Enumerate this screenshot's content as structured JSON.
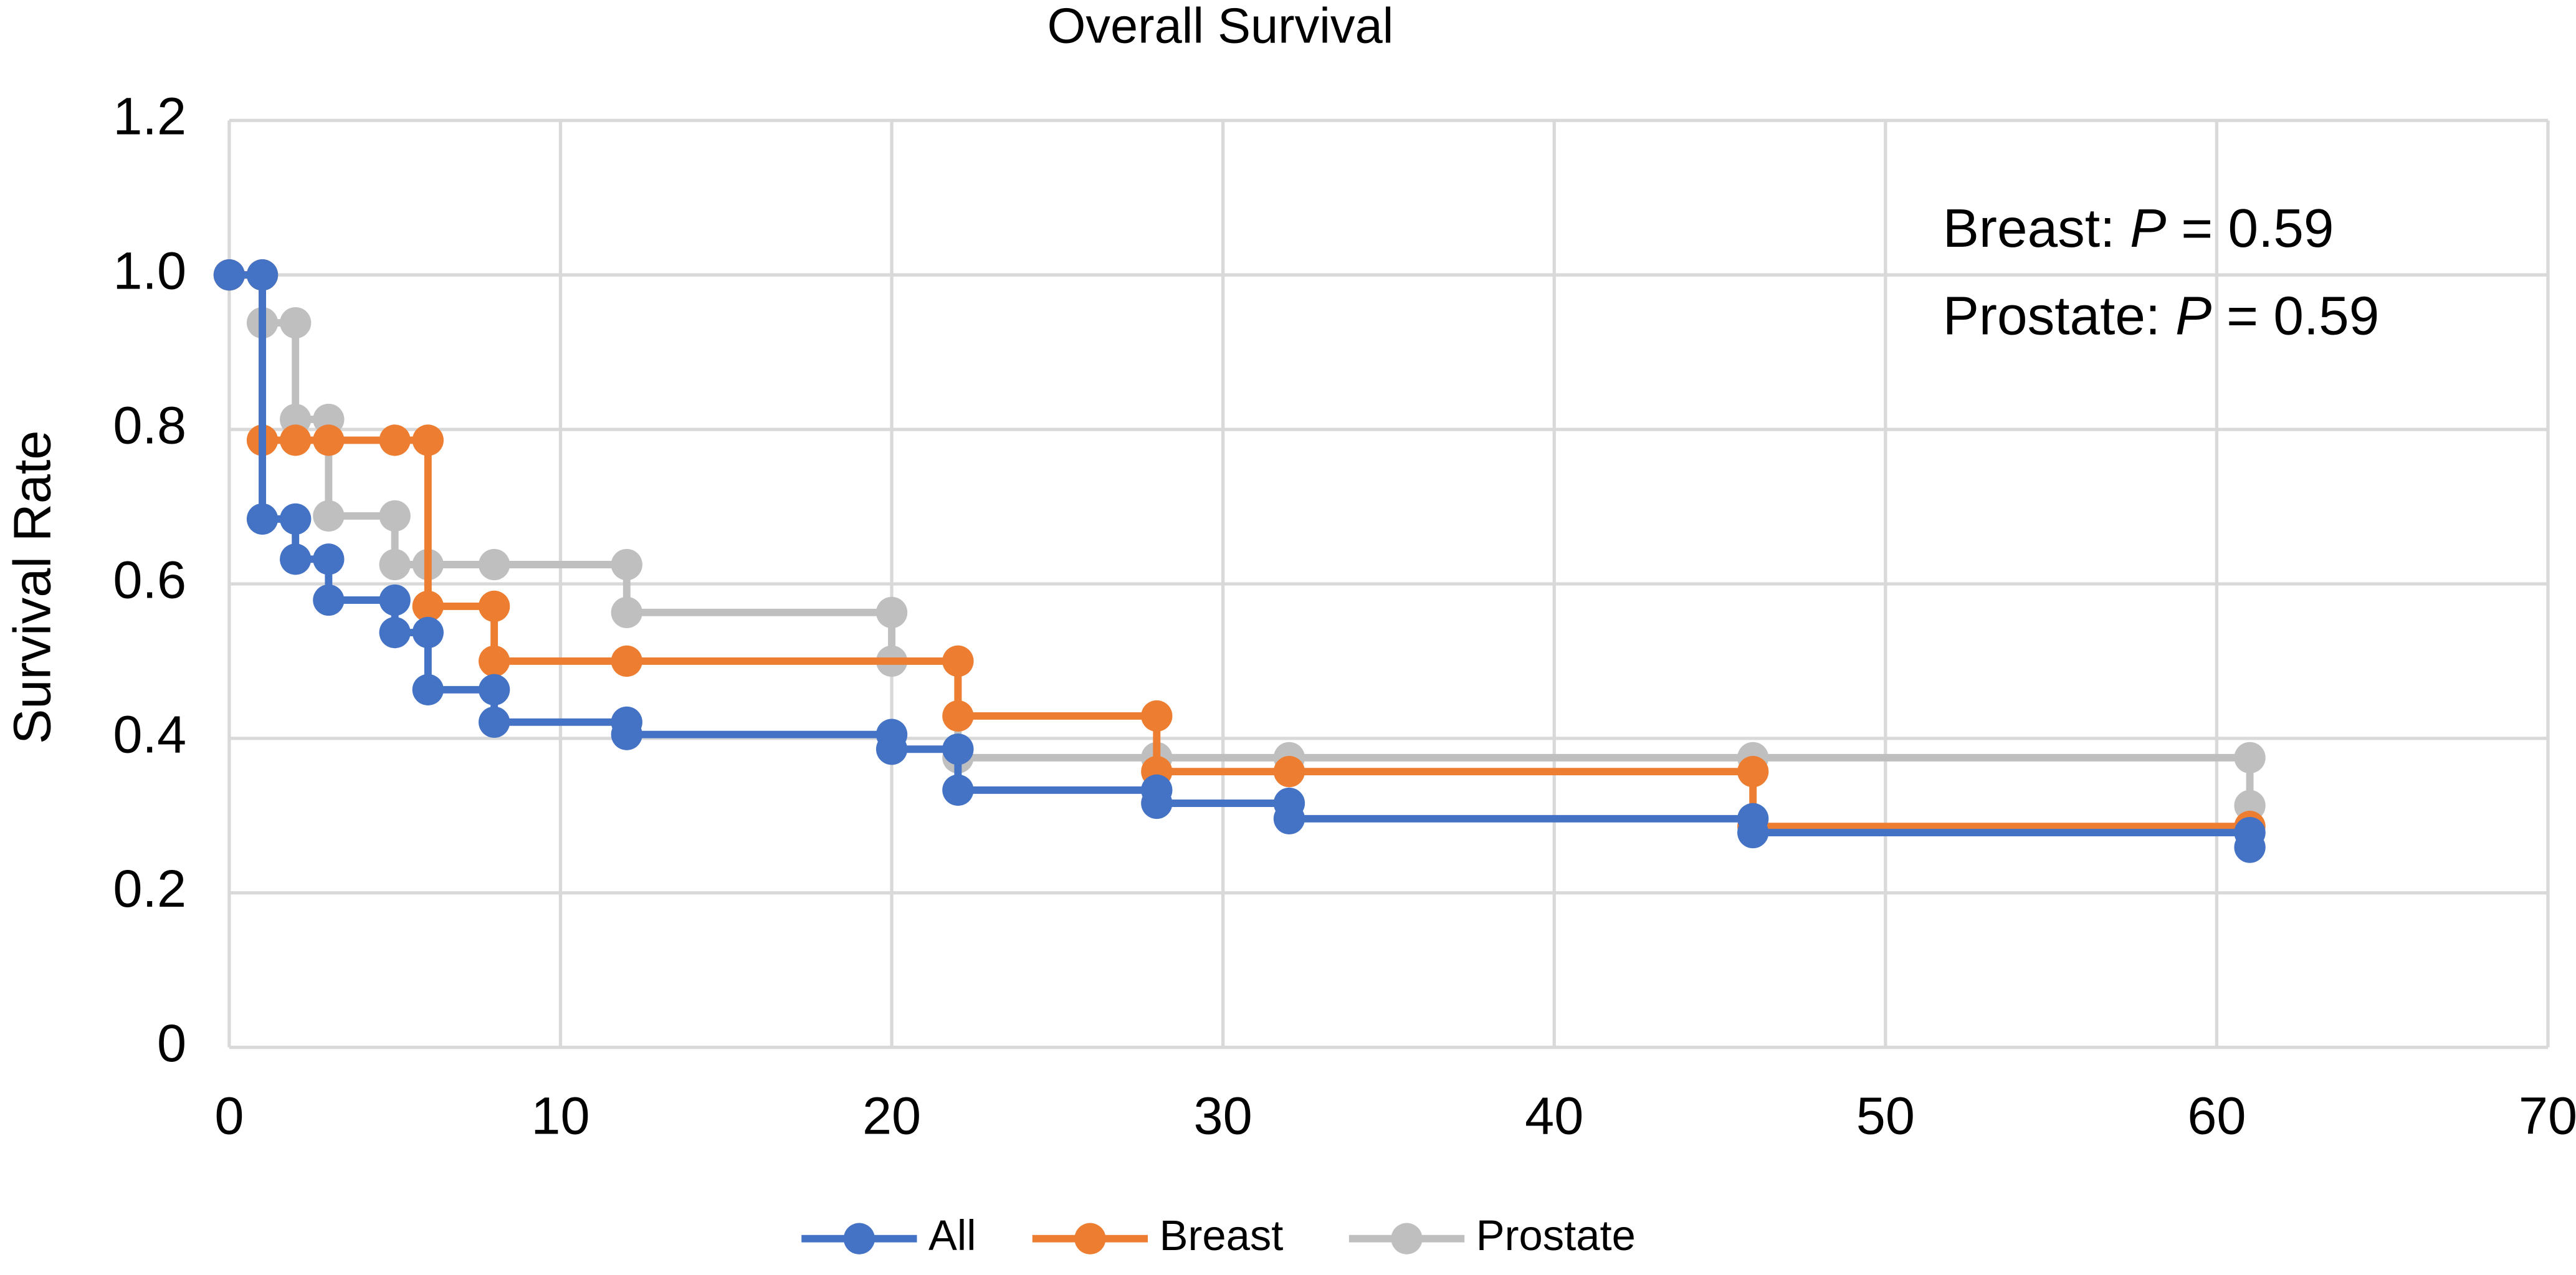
{
  "chart_data": {
    "type": "step",
    "title": "Overall Survival",
    "y_label": "Survival Rate",
    "xlim": [
      0,
      70
    ],
    "xticks": [
      0,
      10,
      20,
      30,
      40,
      50,
      60,
      70
    ],
    "ylim": [
      0,
      1.2
    ],
    "yticks": [
      0,
      0.2,
      0.4,
      0.6,
      0.8,
      {
        "value": 1,
        "label": "1.0"
      },
      1.2
    ],
    "grid": true,
    "legend": "bottom",
    "annotations": [
      {
        "label": "Breast:",
        "symbol": "P",
        "text": "= 0.59"
      },
      {
        "label": "Prostate:",
        "symbol": "P",
        "text": "= 0.59"
      }
    ],
    "series": [
      {
        "name": "All",
        "color": "#4472c4",
        "x": [
          0,
          1,
          1,
          2,
          2,
          3,
          3,
          5,
          5,
          6,
          6,
          8,
          8,
          12,
          12,
          20,
          20,
          22,
          22,
          28,
          28,
          32,
          32,
          46,
          46,
          61,
          61
        ],
        "values": [
          1,
          1,
          0.684,
          0.684,
          0.632,
          0.632,
          0.579,
          0.579,
          0.537,
          0.537,
          0.463,
          0.463,
          0.421,
          0.421,
          0.405,
          0.405,
          0.386,
          0.386,
          0.333,
          0.333,
          0.316,
          0.316,
          0.296,
          0.296,
          0.278,
          0.278,
          0.259
        ]
      },
      {
        "name": "Breast",
        "color": "#ed7d31",
        "x": [
          0,
          1,
          1,
          2,
          3,
          5,
          6,
          6,
          8,
          8,
          12,
          22,
          22,
          28,
          28,
          32,
          46,
          46,
          61
        ],
        "values": [
          1,
          1,
          0.786,
          0.786,
          0.786,
          0.786,
          0.786,
          0.571,
          0.571,
          0.5,
          0.5,
          0.5,
          0.429,
          0.429,
          0.357,
          0.357,
          0.357,
          0.286,
          0.286
        ]
      },
      {
        "name": "Prostate",
        "color": "#bfbfbf",
        "x": [
          0,
          1,
          1,
          2,
          2,
          3,
          3,
          5,
          5,
          6,
          8,
          12,
          12,
          20,
          20,
          22,
          22,
          28,
          32,
          46,
          61,
          61
        ],
        "values": [
          1,
          1,
          0.938,
          0.938,
          0.813,
          0.813,
          0.688,
          0.688,
          0.625,
          0.625,
          0.625,
          0.625,
          0.563,
          0.563,
          0.5,
          0.5,
          0.375,
          0.375,
          0.375,
          0.375,
          0.375,
          0.313
        ]
      }
    ]
  }
}
